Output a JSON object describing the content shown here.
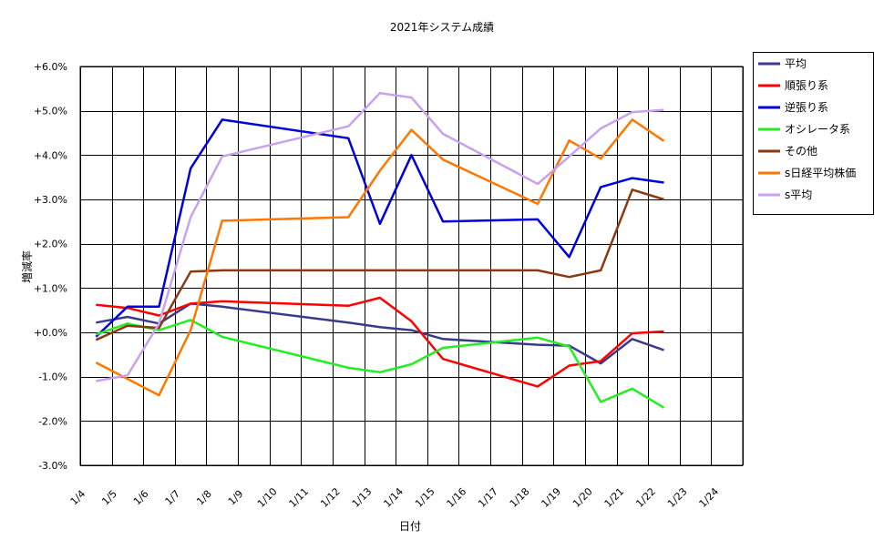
{
  "chart_data": {
    "type": "line",
    "title": "2021年システム成績",
    "xlabel": "日付",
    "ylabel": "増減率",
    "ylim": [
      -3.0,
      6.0
    ],
    "yticks": [
      "+6.0%",
      "+5.0%",
      "+4.0%",
      "+3.0%",
      "+2.0%",
      "+1.0%",
      "+0.0%",
      "-1.0%",
      "-2.0%",
      "-3.0%"
    ],
    "ytick_values": [
      6,
      5,
      4,
      3,
      2,
      1,
      0,
      -1,
      -2,
      -3
    ],
    "categories": [
      "1/4",
      "1/5",
      "1/6",
      "1/7",
      "1/8",
      "1/9",
      "1/10",
      "1/11",
      "1/12",
      "1/13",
      "1/14",
      "1/15",
      "1/16",
      "1/17",
      "1/18",
      "1/19",
      "1/20",
      "1/21",
      "1/22",
      "1/23",
      "1/24"
    ],
    "grid": true,
    "legend_position": "right",
    "series": [
      {
        "name": "平均",
        "color": "#3a3a8c",
        "points": [
          [
            0,
            0.22
          ],
          [
            1,
            0.35
          ],
          [
            2,
            0.2
          ],
          [
            3,
            0.65
          ],
          [
            4,
            0.58
          ],
          [
            8,
            0.22
          ],
          [
            9,
            0.12
          ],
          [
            10,
            0.05
          ],
          [
            11,
            -0.15
          ],
          [
            14,
            -0.28
          ],
          [
            15,
            -0.3
          ],
          [
            16,
            -0.7
          ],
          [
            17,
            -0.15
          ],
          [
            18,
            -0.4
          ]
        ]
      },
      {
        "name": "順張り系",
        "color": "#ff0000",
        "points": [
          [
            0,
            0.62
          ],
          [
            1,
            0.55
          ],
          [
            2,
            0.38
          ],
          [
            3,
            0.65
          ],
          [
            4,
            0.7
          ],
          [
            8,
            0.6
          ],
          [
            9,
            0.78
          ],
          [
            10,
            0.25
          ],
          [
            11,
            -0.6
          ],
          [
            14,
            -1.22
          ],
          [
            15,
            -0.75
          ],
          [
            16,
            -0.65
          ],
          [
            17,
            -0.02
          ],
          [
            18,
            0.02
          ]
        ]
      },
      {
        "name": "逆張り系",
        "color": "#0000dd",
        "points": [
          [
            0,
            -0.1
          ],
          [
            1,
            0.58
          ],
          [
            2,
            0.58
          ],
          [
            3,
            3.7
          ],
          [
            4,
            4.8
          ],
          [
            8,
            4.38
          ],
          [
            9,
            2.45
          ],
          [
            10,
            4.0
          ],
          [
            11,
            2.5
          ],
          [
            14,
            2.55
          ],
          [
            15,
            1.7
          ],
          [
            16,
            3.28
          ],
          [
            17,
            3.48
          ],
          [
            18,
            3.38
          ]
        ]
      },
      {
        "name": "オシレータ系",
        "color": "#22ee22",
        "points": [
          [
            0,
            -0.05
          ],
          [
            1,
            0.2
          ],
          [
            2,
            0.05
          ],
          [
            3,
            0.28
          ],
          [
            4,
            -0.1
          ],
          [
            8,
            -0.8
          ],
          [
            9,
            -0.9
          ],
          [
            10,
            -0.72
          ],
          [
            11,
            -0.35
          ],
          [
            14,
            -0.12
          ],
          [
            15,
            -0.32
          ],
          [
            16,
            -1.57
          ],
          [
            17,
            -1.27
          ],
          [
            18,
            -1.7
          ]
        ]
      },
      {
        "name": "その他",
        "color": "#8b3a0f",
        "points": [
          [
            0,
            -0.17
          ],
          [
            1,
            0.15
          ],
          [
            2,
            0.1
          ],
          [
            3,
            1.37
          ],
          [
            4,
            1.4
          ],
          [
            8,
            1.4
          ],
          [
            9,
            1.4
          ],
          [
            10,
            1.4
          ],
          [
            11,
            1.4
          ],
          [
            14,
            1.4
          ],
          [
            15,
            1.25
          ],
          [
            16,
            1.4
          ],
          [
            17,
            3.22
          ],
          [
            18,
            3.0
          ]
        ]
      },
      {
        "name": "s日経平均株価",
        "color": "#ff7700",
        "points": [
          [
            0,
            -0.68
          ],
          [
            2,
            -1.42
          ],
          [
            3,
            0.05
          ],
          [
            4,
            2.52
          ],
          [
            8,
            2.6
          ],
          [
            9,
            3.65
          ],
          [
            10,
            4.57
          ],
          [
            11,
            3.9
          ],
          [
            14,
            2.9
          ],
          [
            15,
            4.33
          ],
          [
            16,
            3.92
          ],
          [
            17,
            4.8
          ],
          [
            18,
            4.32
          ]
        ]
      },
      {
        "name": "s平均",
        "color": "#c8a2ee",
        "points": [
          [
            0,
            -1.1
          ],
          [
            1,
            -0.97
          ],
          [
            2,
            0.2
          ],
          [
            3,
            2.6
          ],
          [
            4,
            3.97
          ],
          [
            8,
            4.65
          ],
          [
            9,
            5.4
          ],
          [
            10,
            5.3
          ],
          [
            11,
            4.48
          ],
          [
            14,
            3.35
          ],
          [
            15,
            3.97
          ],
          [
            16,
            4.6
          ],
          [
            17,
            4.97
          ],
          [
            18,
            5.02
          ]
        ]
      }
    ]
  }
}
